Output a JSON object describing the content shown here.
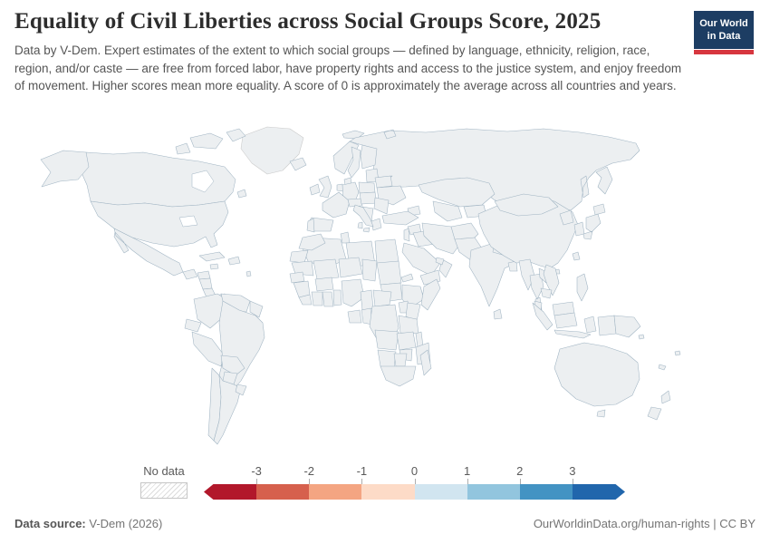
{
  "header": {
    "title": "Equality of Civil Liberties across Social Groups Score, 2025",
    "subtitle": "Data by V-Dem. Expert estimates of the extent to which social groups — defined by language, ethnicity, religion, race, region, and/or caste — are free from forced labor, have property rights and access to the justice system, and enjoy freedom of movement. Higher scores mean more equality. A score of 0 is approximately the average across all countries and years.",
    "logo": {
      "line1": "Our World",
      "line2": "in Data",
      "bg": "#1d3d63",
      "stripe": "#d7363f"
    }
  },
  "legend": {
    "no_data_label": "No data",
    "ticks": [
      "-3",
      "-2",
      "-1",
      "0",
      "1",
      "2",
      "3"
    ],
    "colors": [
      "#b2182b",
      "#d6604d",
      "#f4a582",
      "#fddbc7",
      "#d1e5f0",
      "#92c5de",
      "#4393c3",
      "#2166ac"
    ]
  },
  "footer": {
    "source_label": "Data source:",
    "source_value": " V-Dem (2026)",
    "link": "OurWorldinData.org/human-rights",
    "license": " | CC BY"
  },
  "chart_data": {
    "type": "choropleth",
    "title": "Equality of Civil Liberties across Social Groups Score",
    "year": 2025,
    "scale_range": [
      -3,
      3
    ],
    "bins": [
      {
        "range": "below -3",
        "color": "#b2182b"
      },
      {
        "range": "-3 to -2",
        "color": "#d6604d"
      },
      {
        "range": "-2 to -1",
        "color": "#f4a582"
      },
      {
        "range": "-1 to 0",
        "color": "#fddbc7"
      },
      {
        "range": "0 to 1",
        "color": "#d1e5f0"
      },
      {
        "range": "1 to 2",
        "color": "#92c5de"
      },
      {
        "range": "2 to 3",
        "color": "#4393c3"
      },
      {
        "range": "above 3",
        "color": "#2166ac"
      },
      {
        "range": "No data",
        "color": "hatch"
      }
    ],
    "countries": [
      {
        "id": "greenland",
        "name": "Greenland",
        "bin": "No data",
        "color": "hatch"
      },
      {
        "id": "canada",
        "name": "Canada",
        "bin": "-1 to 0",
        "color": "#fddbc7"
      },
      {
        "id": "usa",
        "name": "United States",
        "bin": "0 to 1",
        "color": "#d1e5f0"
      },
      {
        "id": "mexico",
        "name": "Mexico",
        "bin": "-1 to 0",
        "color": "#fddbc7"
      },
      {
        "id": "guatemala",
        "name": "Guatemala",
        "bin": "-2 to -1",
        "color": "#f4a582"
      },
      {
        "id": "honduras",
        "name": "Honduras",
        "bin": "-1 to 0",
        "color": "#fddbc7"
      },
      {
        "id": "nicaragua",
        "name": "Nicaragua",
        "bin": "-3 to -2",
        "color": "#d6604d"
      },
      {
        "id": "costa_rica",
        "name": "Costa Rica",
        "bin": "above 3",
        "color": "#2166ac"
      },
      {
        "id": "panama",
        "name": "Panama",
        "bin": "-1 to 0",
        "color": "#fddbc7"
      },
      {
        "id": "cuba",
        "name": "Cuba",
        "bin": "1 to 2",
        "color": "#92c5de"
      },
      {
        "id": "jamaica",
        "name": "Jamaica",
        "bin": "0 to 1",
        "color": "#d1e5f0"
      },
      {
        "id": "hispaniola",
        "name": "Haiti / Dominican Rep.",
        "bin": "-2 to -1",
        "color": "#f4a582"
      },
      {
        "id": "antilles",
        "name": "Lesser Antilles",
        "bin": "0 to 1",
        "color": "#d1e5f0"
      },
      {
        "id": "colombia",
        "name": "Colombia",
        "bin": "0 to 1",
        "color": "#d1e5f0"
      },
      {
        "id": "venezuela",
        "name": "Venezuela",
        "bin": "-1 to 0",
        "color": "#fddbc7"
      },
      {
        "id": "guyanas",
        "name": "Guyana / Suriname",
        "bin": "0 to 1",
        "color": "#d1e5f0"
      },
      {
        "id": "ecuador",
        "name": "Ecuador",
        "bin": "0 to 1",
        "color": "#d1e5f0"
      },
      {
        "id": "peru",
        "name": "Peru",
        "bin": "-1 to 0",
        "color": "#fddbc7"
      },
      {
        "id": "brazil",
        "name": "Brazil",
        "bin": "0 to 1",
        "color": "#d1e5f0"
      },
      {
        "id": "bolivia",
        "name": "Bolivia",
        "bin": "1 to 2",
        "color": "#92c5de"
      },
      {
        "id": "paraguay",
        "name": "Paraguay",
        "bin": "-3 to -2",
        "color": "#d6604d"
      },
      {
        "id": "chile",
        "name": "Chile",
        "bin": "0 to 1",
        "color": "#d1e5f0"
      },
      {
        "id": "argentina",
        "name": "Argentina",
        "bin": "1 to 2",
        "color": "#92c5de"
      },
      {
        "id": "uruguay",
        "name": "Uruguay",
        "bin": "1 to 2",
        "color": "#92c5de"
      },
      {
        "id": "iceland",
        "name": "Iceland",
        "bin": "1 to 2",
        "color": "#92c5de"
      },
      {
        "id": "ireland",
        "name": "Ireland",
        "bin": "above 3",
        "color": "#2166ac"
      },
      {
        "id": "uk",
        "name": "United Kingdom",
        "bin": "0 to 1",
        "color": "#d1e5f0"
      },
      {
        "id": "norway",
        "name": "Norway",
        "bin": "2 to 3",
        "color": "#4393c3"
      },
      {
        "id": "sweden",
        "name": "Sweden",
        "bin": "2 to 3",
        "color": "#4393c3"
      },
      {
        "id": "finland",
        "name": "Finland",
        "bin": "2 to 3",
        "color": "#4393c3"
      },
      {
        "id": "denmark",
        "name": "Denmark",
        "bin": "2 to 3",
        "color": "#4393c3"
      },
      {
        "id": "svalbard",
        "name": "Svalbard",
        "bin": "1 to 2",
        "color": "#92c5de"
      },
      {
        "id": "baltics",
        "name": "Baltic states",
        "bin": "1 to 2",
        "color": "#92c5de"
      },
      {
        "id": "germany",
        "name": "Germany",
        "bin": "above 3",
        "color": "#11508f"
      },
      {
        "id": "benelux",
        "name": "Netherlands / Belgium",
        "bin": "2 to 3",
        "color": "#4393c3"
      },
      {
        "id": "france",
        "name": "France",
        "bin": "2 to 3",
        "color": "#4393c3"
      },
      {
        "id": "spain",
        "name": "Spain",
        "bin": "1 to 2",
        "color": "#92c5de"
      },
      {
        "id": "portugal",
        "name": "Portugal",
        "bin": "2 to 3",
        "color": "#4393c3"
      },
      {
        "id": "italy",
        "name": "Italy",
        "bin": "2 to 3",
        "color": "#4393c3"
      },
      {
        "id": "alpine",
        "name": "Switzerland / Austria",
        "bin": "2 to 3",
        "color": "#4393c3"
      },
      {
        "id": "poland",
        "name": "Poland",
        "bin": "2 to 3",
        "color": "#4393c3"
      },
      {
        "id": "central_europe",
        "name": "Czechia / Slovakia / Hungary",
        "bin": "1 to 2",
        "color": "#92c5de"
      },
      {
        "id": "romania_bulgaria",
        "name": "Romania / Bulgaria",
        "bin": "0 to 1",
        "color": "#d1e5f0"
      },
      {
        "id": "balkans",
        "name": "Western Balkans",
        "bin": "0 to 1",
        "color": "#d1e5f0"
      },
      {
        "id": "greece",
        "name": "Greece",
        "bin": "2 to 3",
        "color": "#4393c3"
      },
      {
        "id": "belarus",
        "name": "Belarus",
        "bin": "0 to 1",
        "color": "#d1e5f0"
      },
      {
        "id": "ukraine",
        "name": "Ukraine",
        "bin": "0 to 1",
        "color": "#f7f3ef"
      },
      {
        "id": "russia",
        "name": "Russia",
        "bin": "-1 to 0",
        "color": "#fddbc7"
      },
      {
        "id": "caucasus",
        "name": "Georgia / Armenia / Azerbaijan",
        "bin": "2 to 3",
        "color": "#4393c3"
      },
      {
        "id": "kazakhstan",
        "name": "Kazakhstan",
        "bin": "0 to 1",
        "color": "#d1e5f0"
      },
      {
        "id": "uzbek_turkmen",
        "name": "Uzbekistan / Turkmenistan",
        "bin": "-1 to 0",
        "color": "#fddbc7"
      },
      {
        "id": "kyrgyz_tajik",
        "name": "Kyrgyzstan / Tajikistan",
        "bin": "1 to 2",
        "color": "#92c5de"
      },
      {
        "id": "turkey",
        "name": "Turkey",
        "bin": "0 to 1",
        "color": "#f7f3ef"
      },
      {
        "id": "syria",
        "name": "Syria",
        "bin": "-1 to 0",
        "color": "#fddbc7"
      },
      {
        "id": "levant",
        "name": "Levant",
        "bin": "0 to 1",
        "color": "#d1e5f0"
      },
      {
        "id": "iraq",
        "name": "Iraq",
        "bin": "0 to 1",
        "color": "#f7f3ef"
      },
      {
        "id": "iran",
        "name": "Iran",
        "bin": "-1 to 0",
        "color": "#fddbc7"
      },
      {
        "id": "saudi",
        "name": "Saudi Arabia",
        "bin": "-2 to -1",
        "color": "#f4a582"
      },
      {
        "id": "yemen",
        "name": "Yemen",
        "bin": "-2 to -1",
        "color": "#f4a582"
      },
      {
        "id": "oman",
        "name": "Oman",
        "bin": "0 to 1",
        "color": "#d1e5f0"
      },
      {
        "id": "uae",
        "name": "United Arab Emirates",
        "bin": "0 to 1",
        "color": "#d1e5f0"
      },
      {
        "id": "afghanistan",
        "name": "Afghanistan",
        "bin": "-3 to -2",
        "color": "#d6604d"
      },
      {
        "id": "pakistan",
        "name": "Pakistan",
        "bin": "-2 to -1",
        "color": "#f4a582"
      },
      {
        "id": "india",
        "name": "India",
        "bin": "-2 to -1",
        "color": "#f4a582"
      },
      {
        "id": "nepal",
        "name": "Nepal",
        "bin": "-2 to -1",
        "color": "#f4a582"
      },
      {
        "id": "bangladesh",
        "name": "Bangladesh",
        "bin": "-2 to -1",
        "color": "#f4a582"
      },
      {
        "id": "sri_lanka",
        "name": "Sri Lanka",
        "bin": "0 to 1",
        "color": "#d1e5f0"
      },
      {
        "id": "china",
        "name": "China",
        "bin": "-3 to -2",
        "color": "#d6604d"
      },
      {
        "id": "mongolia",
        "name": "Mongolia",
        "bin": "above 3",
        "color": "#2166ac"
      },
      {
        "id": "north_korea",
        "name": "North Korea",
        "bin": "-1 to 0",
        "color": "#fddbc7"
      },
      {
        "id": "south_korea",
        "name": "South Korea",
        "bin": "0 to 1",
        "color": "#d1e5f0"
      },
      {
        "id": "japan",
        "name": "Japan",
        "bin": "above 3",
        "color": "#2166ac"
      },
      {
        "id": "taiwan",
        "name": "Taiwan",
        "bin": "above 3",
        "color": "#2166ac"
      },
      {
        "id": "myanmar",
        "name": "Myanmar",
        "bin": "-2 to -1",
        "color": "#f4a582"
      },
      {
        "id": "thailand",
        "name": "Thailand",
        "bin": "-1 to 0",
        "color": "#fddbc7"
      },
      {
        "id": "laos",
        "name": "Laos",
        "bin": "-1 to 0",
        "color": "#fddbc7"
      },
      {
        "id": "vietnam",
        "name": "Vietnam",
        "bin": "0 to 1",
        "color": "#d1e5f0"
      },
      {
        "id": "cambodia",
        "name": "Cambodia",
        "bin": "-1 to 0",
        "color": "#fddbc7"
      },
      {
        "id": "malaysia",
        "name": "Malaysia",
        "bin": "0 to 1",
        "color": "#d1e5f0"
      },
      {
        "id": "indonesia",
        "name": "Indonesia",
        "bin": "-1 to 0",
        "color": "#fddbc7"
      },
      {
        "id": "philippines",
        "name": "Philippines",
        "bin": "0 to 1",
        "color": "#d1e5f0"
      },
      {
        "id": "png",
        "name": "Papua New Guinea",
        "bin": "0 to 1",
        "color": "#d1e5f0"
      },
      {
        "id": "australia",
        "name": "Australia",
        "bin": "1 to 2",
        "color": "#74add1"
      },
      {
        "id": "new_zealand",
        "name": "New Zealand",
        "bin": "1 to 2",
        "color": "#74add1"
      },
      {
        "id": "fiji",
        "name": "Fiji",
        "bin": "1 to 2",
        "color": "#92c5de"
      },
      {
        "id": "solomon",
        "name": "Solomon Islands",
        "bin": "-1 to 0",
        "color": "#fddbc7"
      },
      {
        "id": "new_caledonia",
        "name": "New Caledonia",
        "bin": "0 to 1",
        "color": "#d1e5f0"
      },
      {
        "id": "morocco",
        "name": "Morocco",
        "bin": "2 to 3",
        "color": "#4393c3"
      },
      {
        "id": "western_sahara",
        "name": "Western Sahara",
        "bin": "0 to 1",
        "color": "#d1e5f0"
      },
      {
        "id": "algeria",
        "name": "Algeria",
        "bin": "0 to 1",
        "color": "#d1e5f0"
      },
      {
        "id": "tunisia",
        "name": "Tunisia",
        "bin": "2 to 3",
        "color": "#4393c3"
      },
      {
        "id": "libya",
        "name": "Libya",
        "bin": "-1 to 0",
        "color": "#fddbc7"
      },
      {
        "id": "egypt",
        "name": "Egypt",
        "bin": "0 to 1",
        "color": "#d1e5f0"
      },
      {
        "id": "mauritania",
        "name": "Mauritania",
        "bin": "-2 to -1",
        "color": "#f4a582"
      },
      {
        "id": "mali",
        "name": "Mali",
        "bin": "-1 to 0",
        "color": "#fddbc7"
      },
      {
        "id": "niger",
        "name": "Niger",
        "bin": "2 to 3",
        "color": "#4393c3"
      },
      {
        "id": "chad",
        "name": "Chad",
        "bin": "-1 to 0",
        "color": "#fddbc7"
      },
      {
        "id": "sudan",
        "name": "Sudan",
        "bin": "-1 to 0",
        "color": "#fddbc7"
      },
      {
        "id": "eritrea",
        "name": "Eritrea",
        "bin": "-2 to -1",
        "color": "#f4a582"
      },
      {
        "id": "south_sudan",
        "name": "South Sudan",
        "bin": "-3 to -2",
        "color": "#d6604d"
      },
      {
        "id": "ethiopia",
        "name": "Ethiopia",
        "bin": "0 to 1",
        "color": "#d1e5f0"
      },
      {
        "id": "somalia",
        "name": "Somalia",
        "bin": "-1 to 0",
        "color": "#fddbc7"
      },
      {
        "id": "senegal",
        "name": "Senegal",
        "bin": "2 to 3",
        "color": "#4393c3"
      },
      {
        "id": "guinea_group",
        "name": "Guinea region",
        "bin": "0 to 1",
        "color": "#d1e5f0"
      },
      {
        "id": "sierra_liberia",
        "name": "Sierra Leone / Liberia",
        "bin": "0 to 1",
        "color": "#d1e5f0"
      },
      {
        "id": "ivory_coast",
        "name": "Côte d'Ivoire",
        "bin": "0 to 1",
        "color": "#d1e5f0"
      },
      {
        "id": "burkina",
        "name": "Burkina Faso",
        "bin": "2 to 3",
        "color": "#4393c3"
      },
      {
        "id": "ghana",
        "name": "Ghana",
        "bin": "above 3",
        "color": "#2166ac"
      },
      {
        "id": "togo_benin",
        "name": "Togo / Benin",
        "bin": "2 to 3",
        "color": "#4393c3"
      },
      {
        "id": "nigeria",
        "name": "Nigeria",
        "bin": "1 to 2",
        "color": "#92c5de"
      },
      {
        "id": "cameroon",
        "name": "Cameroon",
        "bin": "-1 to 0",
        "color": "#fddbc7"
      },
      {
        "id": "car",
        "name": "Central African Republic",
        "bin": "-1 to 0",
        "color": "#fddbc7"
      },
      {
        "id": "gabon",
        "name": "Gabon",
        "bin": "above 3",
        "color": "#2166ac"
      },
      {
        "id": "congo",
        "name": "Congo",
        "bin": "0 to 1",
        "color": "#d1e5f0"
      },
      {
        "id": "drc",
        "name": "Democratic Republic of Congo",
        "bin": "0 to 1",
        "color": "#d1e5f0"
      },
      {
        "id": "uganda",
        "name": "Uganda",
        "bin": "-2 to -1",
        "color": "#f4a582"
      },
      {
        "id": "kenya",
        "name": "Kenya",
        "bin": "0 to 1",
        "color": "#d1e5f0"
      },
      {
        "id": "tanzania",
        "name": "Tanzania",
        "bin": "1 to 2",
        "color": "#74add1"
      },
      {
        "id": "angola",
        "name": "Angola",
        "bin": "0 to 1",
        "color": "#d1e5f0"
      },
      {
        "id": "zambia",
        "name": "Zambia",
        "bin": "0 to 1",
        "color": "#d1e5f0"
      },
      {
        "id": "malawi",
        "name": "Malawi",
        "bin": "2 to 3",
        "color": "#4393c3"
      },
      {
        "id": "mozambique",
        "name": "Mozambique",
        "bin": "0 to 1",
        "color": "#d1e5f0"
      },
      {
        "id": "zimbabwe",
        "name": "Zimbabwe",
        "bin": "0 to 1",
        "color": "#d1e5f0"
      },
      {
        "id": "namibia",
        "name": "Namibia",
        "bin": "0 to 1",
        "color": "#d1e5f0"
      },
      {
        "id": "botswana",
        "name": "Botswana",
        "bin": "0 to 1",
        "color": "#d1e5f0"
      },
      {
        "id": "south_africa",
        "name": "South Africa",
        "bin": "0 to 1",
        "color": "#d1e5f0"
      },
      {
        "id": "madagascar",
        "name": "Madagascar",
        "bin": "0 to 1",
        "color": "#d1e5f0"
      }
    ]
  }
}
